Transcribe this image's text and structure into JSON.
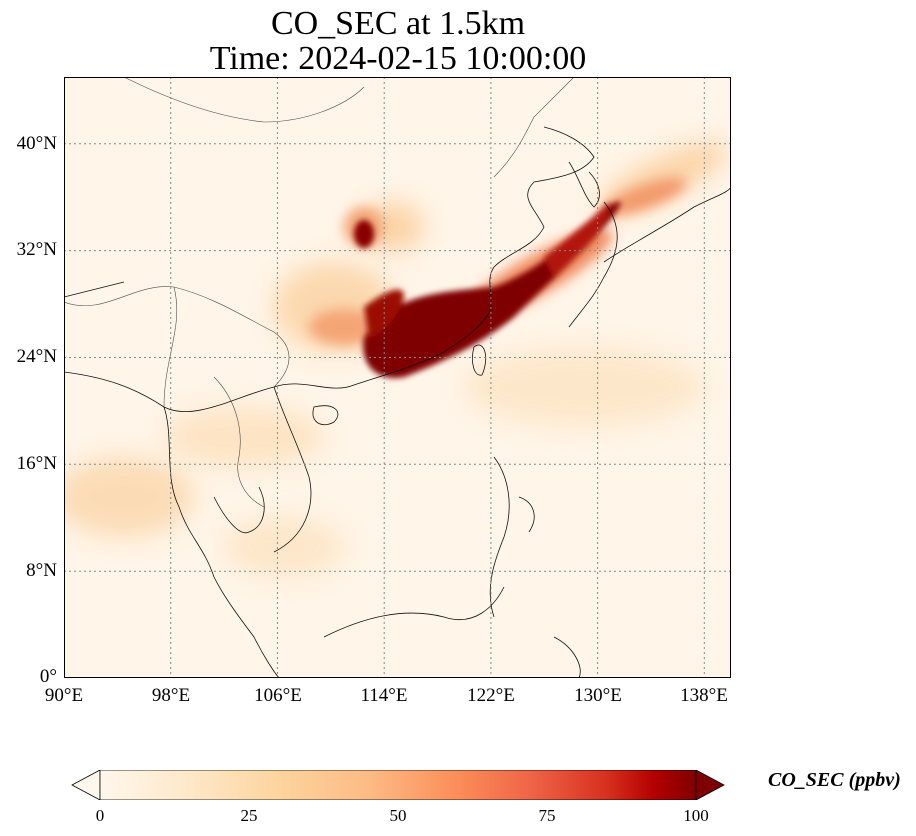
{
  "title": {
    "line1": "CO_SEC at 1.5km",
    "line2": "Time: 2024-02-15 10:00:00"
  },
  "map": {
    "lon_range": [
      90,
      140
    ],
    "lat_range": [
      0,
      45
    ],
    "longitude_labels": [
      "90°E",
      "98°E",
      "106°E",
      "114°E",
      "122°E",
      "130°E",
      "138°E"
    ],
    "latitude_labels": [
      "0°",
      "8°N",
      "16°N",
      "24°N",
      "32°N",
      "40°N"
    ],
    "gridlines": "dotted"
  },
  "colorbar": {
    "title": "CO_SEC (ppbv)",
    "ticks": [
      "0",
      "25",
      "50",
      "75",
      "100"
    ],
    "range": [
      0,
      100
    ],
    "colormap": "OrRd",
    "extend": "both"
  },
  "colors": {
    "low": "#fff7ec",
    "mid": "#fdbb84",
    "high": "#d7301f",
    "max": "#7f0000"
  }
}
